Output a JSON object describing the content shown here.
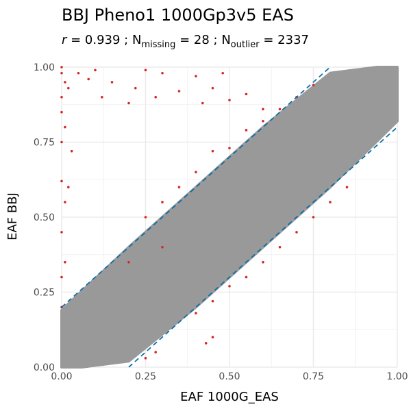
{
  "chart_data": {
    "type": "scatter",
    "title": "BBJ Pheno1 1000Gp3v5 EAS",
    "subtitle": {
      "r_symbol": "r",
      "r_text": " = 0.939 ; N",
      "missing_sub": "missing",
      "missing_text": " = 28 ; N",
      "outlier_sub": "outlier",
      "outlier_text": " = 2337"
    },
    "xlabel": "EAF 1000G_EAS",
    "ylabel": "EAF BBJ",
    "xlim": [
      0,
      1
    ],
    "ylim": [
      0,
      1
    ],
    "x_ticks": [
      "0.00",
      "0.25",
      "0.50",
      "0.75",
      "1.00"
    ],
    "y_ticks": [
      "0.00",
      "0.25",
      "0.50",
      "0.75",
      "1.00"
    ],
    "x_tick_values": [
      0,
      0.25,
      0.5,
      0.75,
      1
    ],
    "y_tick_values": [
      0,
      0.25,
      0.5,
      0.75,
      1
    ],
    "grid": true,
    "threshold_lines": [
      {
        "style": "dashed",
        "intercept": 0.2,
        "slope": 1
      },
      {
        "style": "dashed",
        "intercept": -0.2,
        "slope": 1
      }
    ],
    "series": [
      {
        "color": "#999999",
        "points": [
          [
            0.02,
            0.03
          ],
          [
            0.05,
            0.06
          ],
          [
            0.08,
            0.12
          ],
          [
            0.1,
            0.05
          ],
          [
            0.12,
            0.2
          ],
          [
            0.15,
            0.1
          ],
          [
            0.18,
            0.25
          ],
          [
            0.2,
            0.15
          ],
          [
            0.22,
            0.3
          ],
          [
            0.25,
            0.2
          ],
          [
            0.28,
            0.35
          ],
          [
            0.3,
            0.22
          ],
          [
            0.32,
            0.4
          ],
          [
            0.35,
            0.3
          ],
          [
            0.38,
            0.45
          ],
          [
            0.4,
            0.32
          ],
          [
            0.42,
            0.5
          ],
          [
            0.45,
            0.4
          ],
          [
            0.48,
            0.55
          ],
          [
            0.5,
            0.42
          ],
          [
            0.52,
            0.6
          ],
          [
            0.55,
            0.5
          ],
          [
            0.58,
            0.65
          ],
          [
            0.6,
            0.52
          ],
          [
            0.62,
            0.7
          ],
          [
            0.65,
            0.6
          ],
          [
            0.68,
            0.75
          ],
          [
            0.7,
            0.62
          ],
          [
            0.72,
            0.8
          ],
          [
            0.75,
            0.7
          ],
          [
            0.78,
            0.85
          ],
          [
            0.8,
            0.72
          ],
          [
            0.82,
            0.9
          ],
          [
            0.85,
            0.8
          ],
          [
            0.88,
            0.95
          ],
          [
            0.9,
            0.82
          ],
          [
            0.92,
            0.97
          ],
          [
            0.95,
            0.9
          ],
          [
            0.98,
            0.99
          ],
          [
            0.96,
            0.93
          ]
        ]
      },
      {
        "color": "#d62728",
        "points": [
          [
            0.0,
            1.0
          ],
          [
            0.0,
            0.98
          ],
          [
            0.01,
            0.95
          ],
          [
            0.0,
            0.9
          ],
          [
            0.02,
            0.93
          ],
          [
            0.0,
            0.85
          ],
          [
            0.01,
            0.8
          ],
          [
            0.0,
            0.75
          ],
          [
            0.0,
            0.62
          ],
          [
            0.01,
            0.55
          ],
          [
            0.0,
            0.45
          ],
          [
            0.01,
            0.35
          ],
          [
            0.0,
            0.3
          ],
          [
            0.0,
            0.2
          ],
          [
            0.02,
            0.6
          ],
          [
            0.03,
            0.72
          ],
          [
            0.05,
            0.98
          ],
          [
            0.08,
            0.96
          ],
          [
            0.1,
            0.99
          ],
          [
            0.12,
            0.9
          ],
          [
            0.15,
            0.95
          ],
          [
            0.2,
            0.88
          ],
          [
            0.22,
            0.93
          ],
          [
            0.25,
            0.99
          ],
          [
            0.28,
            0.9
          ],
          [
            0.3,
            0.98
          ],
          [
            0.35,
            0.92
          ],
          [
            0.4,
            0.97
          ],
          [
            0.42,
            0.88
          ],
          [
            0.45,
            0.93
          ],
          [
            0.48,
            0.98
          ],
          [
            0.5,
            0.89
          ],
          [
            0.55,
            0.91
          ],
          [
            0.6,
            0.86
          ],
          [
            0.25,
            0.5
          ],
          [
            0.3,
            0.55
          ],
          [
            0.35,
            0.6
          ],
          [
            0.4,
            0.65
          ],
          [
            0.45,
            0.72
          ],
          [
            0.5,
            0.73
          ],
          [
            0.55,
            0.79
          ],
          [
            0.6,
            0.82
          ],
          [
            0.65,
            0.86
          ],
          [
            0.7,
            0.9
          ],
          [
            0.75,
            0.94
          ],
          [
            0.4,
            0.18
          ],
          [
            0.45,
            0.22
          ],
          [
            0.5,
            0.27
          ],
          [
            0.55,
            0.3
          ],
          [
            0.6,
            0.35
          ],
          [
            0.65,
            0.4
          ],
          [
            0.7,
            0.45
          ],
          [
            0.75,
            0.5
          ],
          [
            0.8,
            0.55
          ],
          [
            0.85,
            0.6
          ],
          [
            0.43,
            0.08
          ],
          [
            0.45,
            0.1
          ],
          [
            0.28,
            0.05
          ],
          [
            0.25,
            0.03
          ],
          [
            0.3,
            0.4
          ],
          [
            0.2,
            0.35
          ]
        ]
      }
    ]
  }
}
